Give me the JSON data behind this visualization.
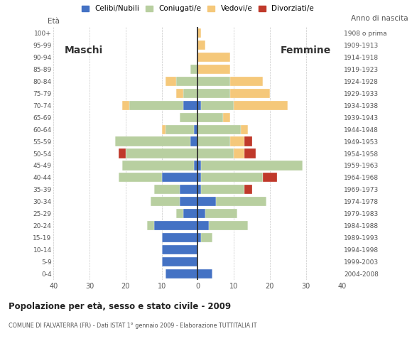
{
  "age_groups": [
    "0-4",
    "5-9",
    "10-14",
    "15-19",
    "20-24",
    "25-29",
    "30-34",
    "35-39",
    "40-44",
    "45-49",
    "50-54",
    "55-59",
    "60-64",
    "65-69",
    "70-74",
    "75-79",
    "80-84",
    "85-89",
    "90-94",
    "95-99",
    "100+"
  ],
  "birth_years": [
    "2004-2008",
    "1999-2003",
    "1994-1998",
    "1989-1993",
    "1984-1988",
    "1979-1983",
    "1974-1978",
    "1969-1973",
    "1964-1968",
    "1959-1963",
    "1954-1958",
    "1949-1953",
    "1944-1948",
    "1939-1943",
    "1934-1938",
    "1929-1933",
    "1924-1928",
    "1919-1923",
    "1914-1918",
    "1909-1913",
    "1908 o prima"
  ],
  "male": {
    "celibi": [
      9,
      10,
      10,
      10,
      12,
      4,
      5,
      5,
      10,
      1,
      0,
      2,
      1,
      0,
      4,
      0,
      0,
      0,
      0,
      0,
      0
    ],
    "coniugati": [
      0,
      0,
      0,
      0,
      2,
      2,
      8,
      7,
      12,
      20,
      20,
      21,
      8,
      5,
      15,
      4,
      6,
      2,
      0,
      0,
      0
    ],
    "vedovi": [
      0,
      0,
      0,
      0,
      0,
      0,
      0,
      0,
      0,
      0,
      0,
      0,
      1,
      0,
      2,
      2,
      3,
      0,
      0,
      0,
      0
    ],
    "divorziati": [
      0,
      0,
      0,
      0,
      0,
      0,
      0,
      0,
      0,
      0,
      2,
      0,
      0,
      0,
      0,
      0,
      0,
      0,
      0,
      0,
      0
    ]
  },
  "female": {
    "celibi": [
      4,
      0,
      0,
      1,
      3,
      2,
      5,
      1,
      1,
      1,
      0,
      0,
      0,
      0,
      1,
      0,
      0,
      0,
      0,
      0,
      0
    ],
    "coniugati": [
      0,
      0,
      0,
      3,
      11,
      9,
      14,
      12,
      17,
      28,
      10,
      9,
      12,
      7,
      9,
      9,
      9,
      0,
      0,
      0,
      0
    ],
    "vedovi": [
      0,
      0,
      0,
      0,
      0,
      0,
      0,
      0,
      0,
      0,
      3,
      4,
      2,
      2,
      15,
      11,
      9,
      9,
      9,
      2,
      1
    ],
    "divorziati": [
      0,
      0,
      0,
      0,
      0,
      0,
      0,
      2,
      4,
      0,
      3,
      2,
      0,
      0,
      0,
      0,
      0,
      0,
      0,
      0,
      0
    ]
  },
  "colors": {
    "celibi": "#4472c4",
    "coniugati": "#b8cfa0",
    "vedovi": "#f5c87a",
    "divorziati": "#c0392b"
  },
  "legend_labels": [
    "Celibi/Nubili",
    "Coniugati/e",
    "Vedovi/e",
    "Divorziati/e"
  ],
  "title": "Popolazione per età, sesso e stato civile - 2009",
  "subtitle": "COMUNE DI FALVATERRA (FR) - Dati ISTAT 1° gennaio 2009 - Elaborazione TUTTITALIA.IT",
  "xlabel_left": "Maschi",
  "xlabel_right": "Femmine",
  "ylabel_left": "Età",
  "ylabel_right": "Anno di nascita",
  "xlim": 40,
  "background_color": "#ffffff",
  "grid_color": "#c8c8c8"
}
